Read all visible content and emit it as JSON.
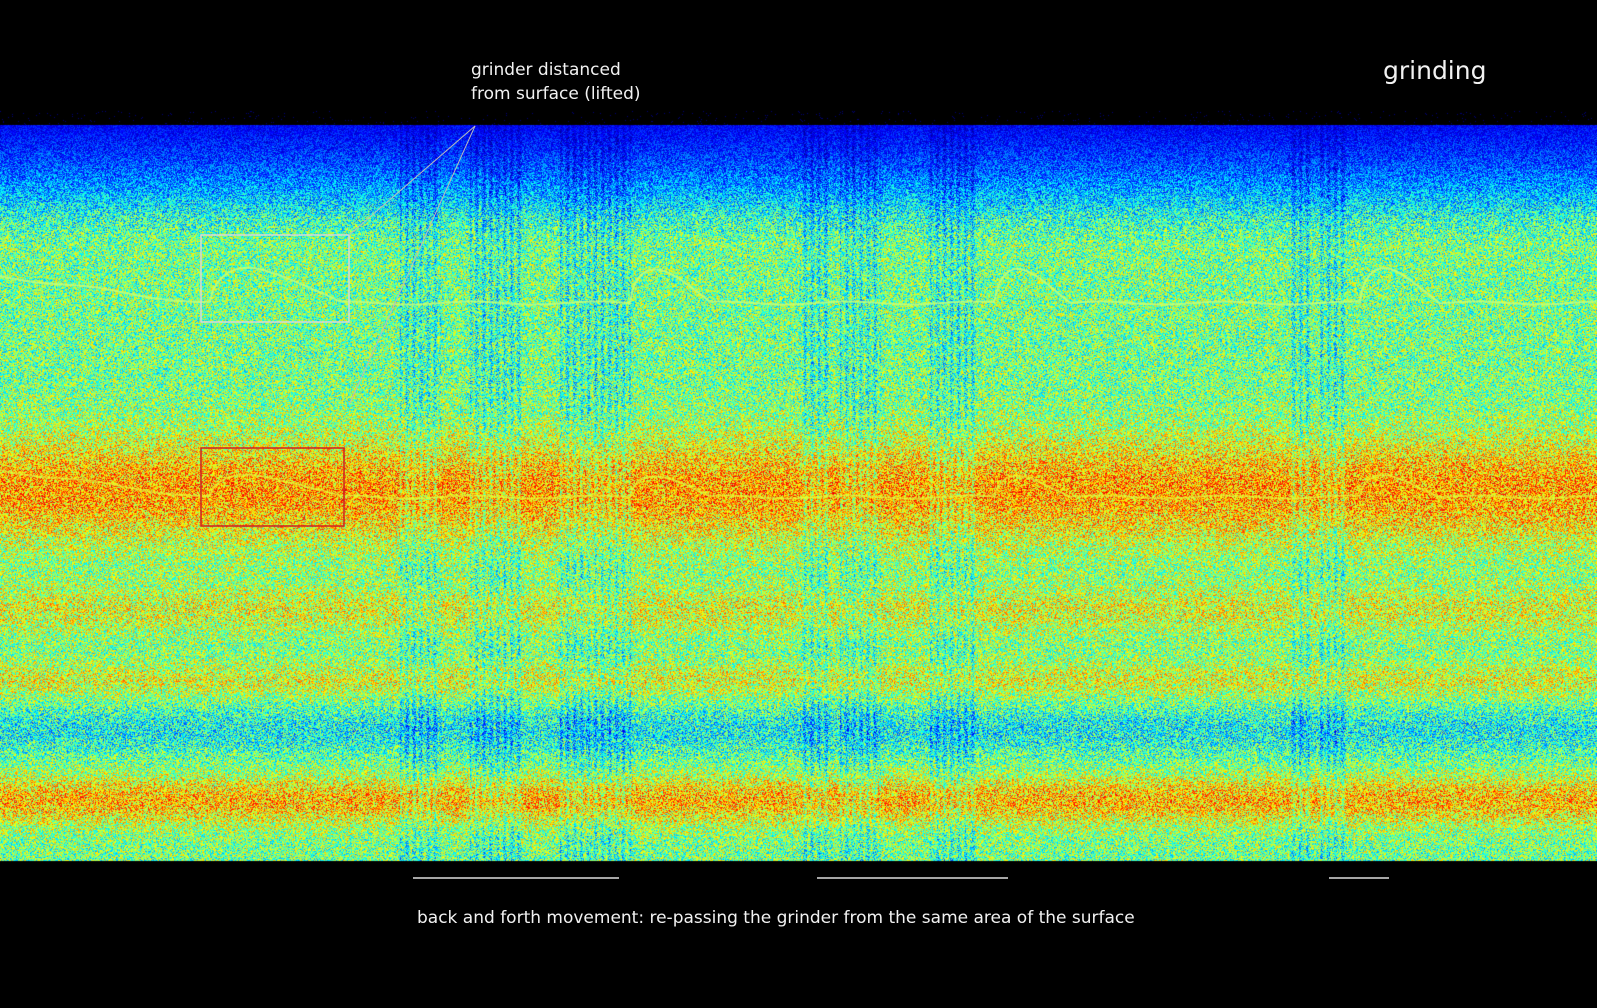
{
  "title": "grinding",
  "annotation": {
    "line1": "grinder distanced",
    "line2": "from surface (lifted)"
  },
  "caption": "back and forth movement: re-passing the grinder from the same area of the surface",
  "colors": {
    "background": "#000000",
    "highlight_box": "#d8d8d8",
    "harmonic_box": "#d02020",
    "colormap": "jet"
  }
}
